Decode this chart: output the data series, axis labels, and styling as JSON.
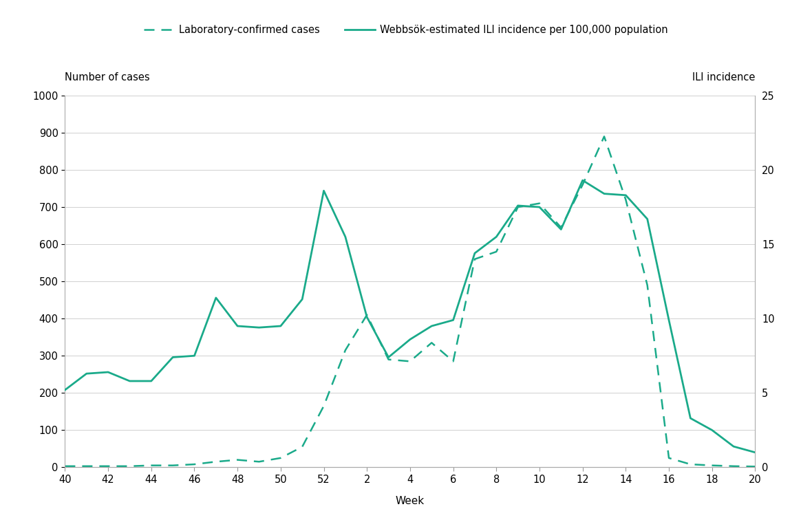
{
  "xlabel": "Week",
  "ylabel_left": "Number of cases",
  "ylabel_right": "ILI incidence",
  "legend_lab": [
    "Laboratory-confirmed cases",
    "Webbsök-estimated ILI incidence per 100,000 population"
  ],
  "color": "#1aaa8a",
  "background_color": "#ffffff",
  "ylim_left": [
    0,
    1000
  ],
  "ylim_right": [
    0,
    25
  ],
  "yticks_left": [
    0,
    100,
    200,
    300,
    400,
    500,
    600,
    700,
    800,
    900,
    1000
  ],
  "yticks_right": [
    0,
    5,
    10,
    15,
    20,
    25
  ],
  "xtick_positions": [
    40,
    42,
    44,
    46,
    48,
    50,
    52,
    54,
    56,
    58,
    60,
    62,
    64,
    66,
    68,
    70,
    72
  ],
  "xtick_labels": [
    "40",
    "42",
    "44",
    "46",
    "48",
    "50",
    "52",
    "2",
    "4",
    "6",
    "8",
    "10",
    "12",
    "14",
    "16",
    "18",
    "20"
  ],
  "lab_x": [
    40,
    41,
    42,
    43,
    44,
    45,
    46,
    47,
    48,
    49,
    50,
    51,
    52,
    53,
    54,
    55,
    56,
    57,
    58,
    59,
    60,
    61,
    62,
    63,
    64,
    65,
    66,
    67,
    68,
    69,
    70,
    71,
    72
  ],
  "lab_cases": [
    3,
    3,
    3,
    3,
    5,
    5,
    8,
    15,
    20,
    15,
    25,
    55,
    165,
    315,
    410,
    290,
    285,
    335,
    285,
    560,
    580,
    700,
    710,
    645,
    760,
    890,
    720,
    490,
    25,
    8,
    5,
    3,
    2
  ],
  "ili_x": [
    40,
    41,
    42,
    43,
    44,
    45,
    46,
    47,
    48,
    49,
    50,
    51,
    52,
    53,
    54,
    55,
    56,
    57,
    58,
    59,
    60,
    61,
    62,
    63,
    64,
    65,
    66,
    67,
    68,
    69,
    70,
    71,
    72
  ],
  "ili_incidence": [
    5.2,
    6.3,
    6.4,
    5.8,
    5.8,
    7.4,
    7.5,
    11.4,
    9.5,
    9.4,
    9.5,
    11.3,
    18.6,
    15.5,
    10.1,
    7.4,
    8.6,
    9.5,
    9.9,
    14.4,
    15.5,
    17.6,
    17.5,
    16.0,
    19.3,
    18.4,
    18.3,
    16.7,
    9.9,
    3.3,
    2.5,
    1.4,
    1.0
  ]
}
